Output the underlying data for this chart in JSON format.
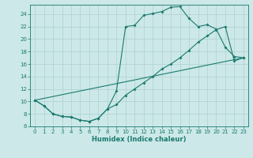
{
  "xlabel": "Humidex (Indice chaleur)",
  "bg_color": "#cce8e8",
  "line_color": "#1a7a6e",
  "grid_color": "#b0d0d0",
  "xlim": [
    -0.5,
    23.5
  ],
  "ylim": [
    6,
    25.5
  ],
  "xticks": [
    0,
    1,
    2,
    3,
    4,
    5,
    6,
    7,
    8,
    9,
    10,
    11,
    12,
    13,
    14,
    15,
    16,
    17,
    18,
    19,
    20,
    21,
    22,
    23
  ],
  "yticks": [
    6,
    8,
    10,
    12,
    14,
    16,
    18,
    20,
    22,
    24
  ],
  "line1_x": [
    0,
    1,
    2,
    3,
    4,
    5,
    6,
    7,
    8,
    9,
    10,
    11,
    12,
    13,
    14,
    15,
    16,
    17,
    18,
    19,
    20,
    21,
    22,
    23
  ],
  "line1_y": [
    10.2,
    9.3,
    8.0,
    7.6,
    7.5,
    7.0,
    6.8,
    7.3,
    8.8,
    11.7,
    22.0,
    22.2,
    23.8,
    24.1,
    24.4,
    25.1,
    25.2,
    23.3,
    22.0,
    22.3,
    21.6,
    18.7,
    17.2,
    17.0
  ],
  "line2_x": [
    0,
    1,
    2,
    3,
    4,
    5,
    6,
    7,
    8,
    9,
    10,
    11,
    12,
    13,
    14,
    15,
    16,
    17,
    18,
    19,
    20,
    21,
    22,
    23
  ],
  "line2_y": [
    10.2,
    9.3,
    8.0,
    7.6,
    7.5,
    7.0,
    6.8,
    7.3,
    8.8,
    9.5,
    11.0,
    12.0,
    13.0,
    14.0,
    15.2,
    16.0,
    17.0,
    18.2,
    19.5,
    20.5,
    21.5,
    22.0,
    16.5,
    17.0
  ],
  "line3_x": [
    0,
    23
  ],
  "line3_y": [
    10.2,
    17.0
  ],
  "marker_size": 2.0,
  "line_width": 0.8,
  "tick_fontsize": 5.0,
  "xlabel_fontsize": 6.0
}
